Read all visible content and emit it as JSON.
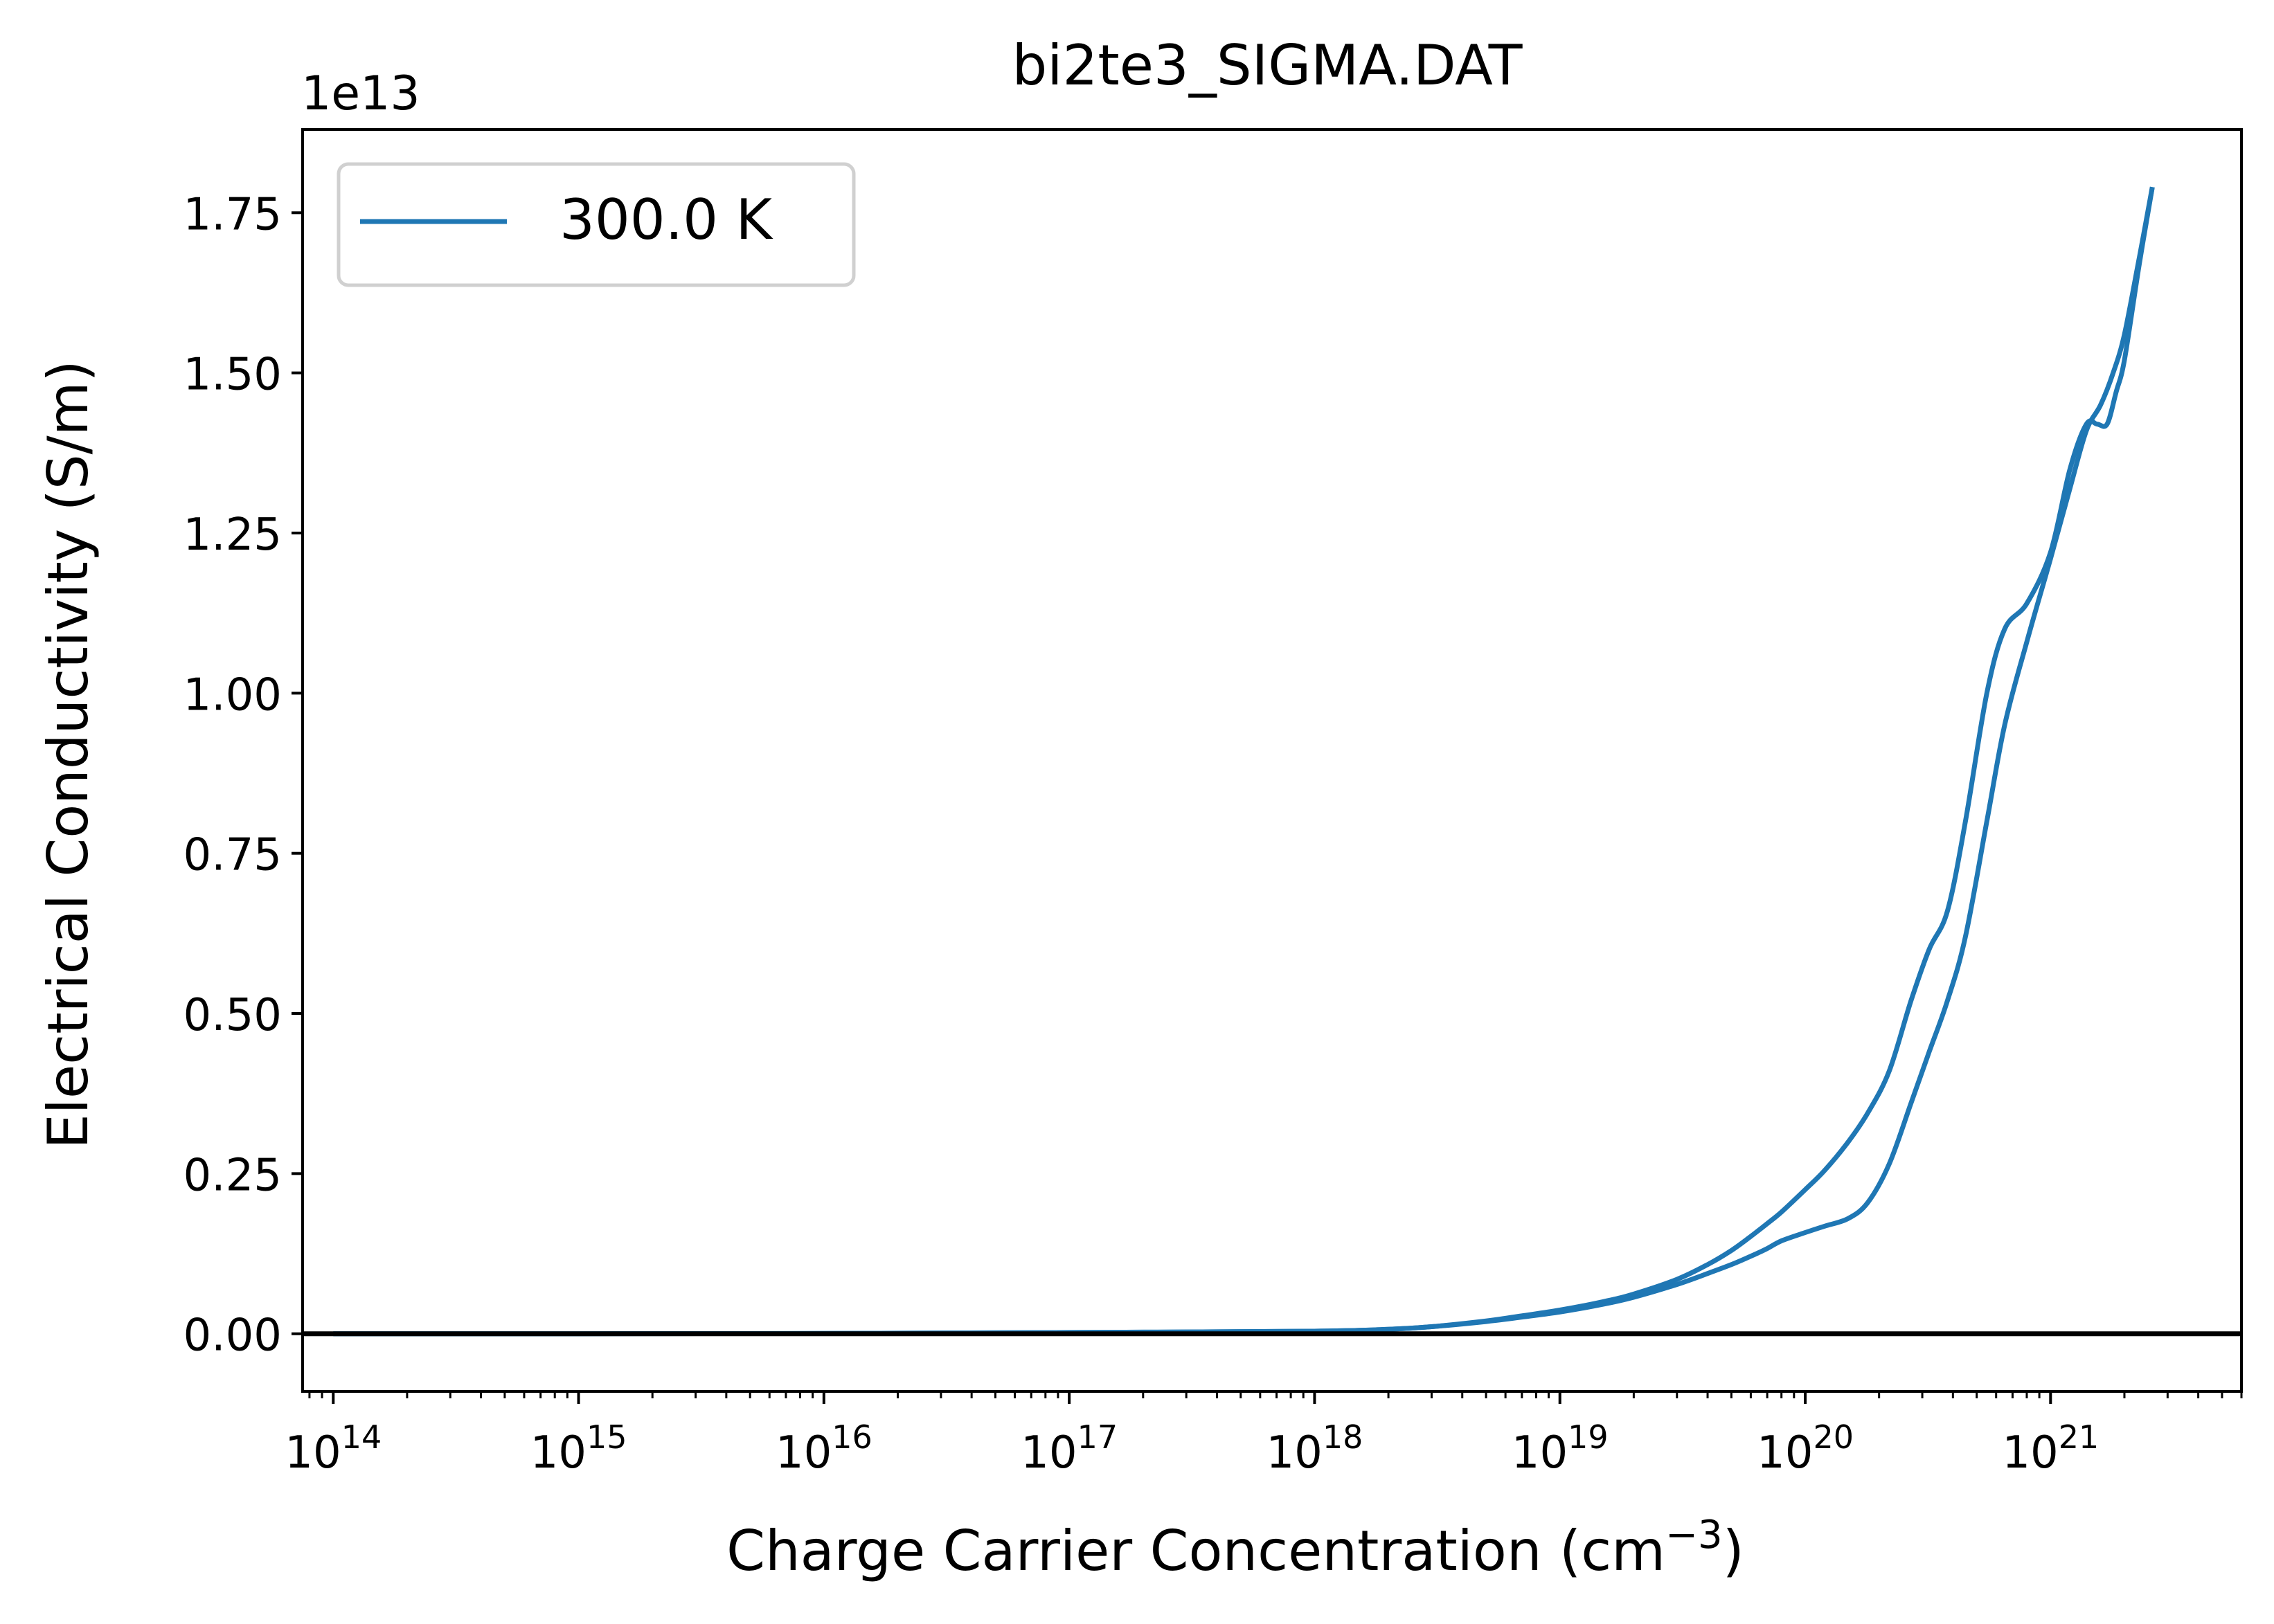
{
  "chart_data": {
    "type": "line",
    "title": "bi2te3_SIGMA.DAT",
    "xlabel": "Charge Carrier Concentration (cm",
    "xlabel_sup": "−3",
    "xlabel_close": ")",
    "ylabel": "Electrical Conductivity (S/m)",
    "y_offset_label": "1e13",
    "x_scale": "log",
    "xlim": [
      75000000000000.0,
      6e+21
    ],
    "ylim": [
      -0.09,
      1.88
    ],
    "x_ticks": [
      {
        "value": 100000000000000.0,
        "base": "10",
        "exp": "14"
      },
      {
        "value": 1000000000000000.0,
        "base": "10",
        "exp": "15"
      },
      {
        "value": 1e+16,
        "base": "10",
        "exp": "16"
      },
      {
        "value": 1e+17,
        "base": "10",
        "exp": "17"
      },
      {
        "value": 1e+18,
        "base": "10",
        "exp": "18"
      },
      {
        "value": 1e+19,
        "base": "10",
        "exp": "19"
      },
      {
        "value": 1e+20,
        "base": "10",
        "exp": "20"
      },
      {
        "value": 1e+21,
        "base": "10",
        "exp": "21"
      }
    ],
    "y_ticks": [
      {
        "value": 0.0,
        "label": "0.00"
      },
      {
        "value": 0.25,
        "label": "0.25"
      },
      {
        "value": 0.5,
        "label": "0.50"
      },
      {
        "value": 0.75,
        "label": "0.75"
      },
      {
        "value": 1.0,
        "label": "1.00"
      },
      {
        "value": 1.25,
        "label": "1.25"
      },
      {
        "value": 1.5,
        "label": "1.50"
      },
      {
        "value": 1.75,
        "label": "1.75"
      }
    ],
    "hline": {
      "y": 0,
      "color": "#000000"
    },
    "grid": false,
    "legend_position": "top-left",
    "series": [
      {
        "name": "300.0 K",
        "color": "#1f77b4",
        "x": [
          100000000000000.0,
          1000000000000000.0,
          1e+16,
          1e+17,
          1e+18,
          2e+18,
          3e+18,
          5e+18,
          7e+18,
          1e+19,
          1.5e+19,
          2e+19,
          3e+19,
          4e+19,
          5e+19,
          6e+19,
          7e+19,
          8e+19,
          1e+20,
          1.2e+20,
          1.5e+20,
          1.8e+20,
          2.2e+20,
          2.7e+20,
          3.2e+20,
          3.8e+20,
          4.5e+20,
          5.5e+20,
          6.5e+20,
          8e+20,
          1e+21,
          1.2e+21,
          1.4e+21,
          1.6e+21,
          1.8e+21,
          2e+21,
          2.3e+21,
          2.6e+21
        ],
        "y": [
          0.0,
          0.0,
          0.0005,
          0.002,
          0.004,
          0.007,
          0.011,
          0.019,
          0.026,
          0.034,
          0.046,
          0.057,
          0.077,
          0.094,
          0.108,
          0.121,
          0.133,
          0.145,
          0.158,
          0.168,
          0.18,
          0.205,
          0.265,
          0.36,
          0.44,
          0.52,
          0.62,
          0.8,
          0.95,
          1.08,
          1.21,
          1.32,
          1.41,
          1.45,
          1.5,
          1.56,
          1.68,
          1.79
        ]
      },
      {
        "name": "",
        "color": "#1f77b4",
        "x": [
          100000000000000.0,
          1000000000000000.0,
          1e+16,
          1e+17,
          1e+18,
          2e+18,
          3e+18,
          5e+18,
          7e+18,
          1e+19,
          1.5e+19,
          2e+19,
          3e+19,
          4e+19,
          5e+19,
          6e+19,
          7e+19,
          8e+19,
          1e+20,
          1.2e+20,
          1.5e+20,
          1.8e+20,
          2.2e+20,
          2.7e+20,
          3.2e+20,
          3.8e+20,
          4.5e+20,
          5.5e+20,
          6.5e+20,
          8e+20,
          1e+21,
          1.2e+21,
          1.4e+21,
          1.55e+21,
          1.7e+21,
          1.85e+21,
          2e+21,
          2.3e+21,
          2.6e+21
        ],
        "y": [
          0.0,
          0.0,
          0.0005,
          0.002,
          0.004,
          0.007,
          0.011,
          0.02,
          0.028,
          0.037,
          0.05,
          0.062,
          0.085,
          0.108,
          0.13,
          0.152,
          0.172,
          0.19,
          0.225,
          0.255,
          0.3,
          0.345,
          0.41,
          0.52,
          0.6,
          0.66,
          0.8,
          1.0,
          1.1,
          1.14,
          1.22,
          1.35,
          1.42,
          1.42,
          1.42,
          1.47,
          1.52,
          1.67,
          1.79
        ]
      }
    ]
  }
}
